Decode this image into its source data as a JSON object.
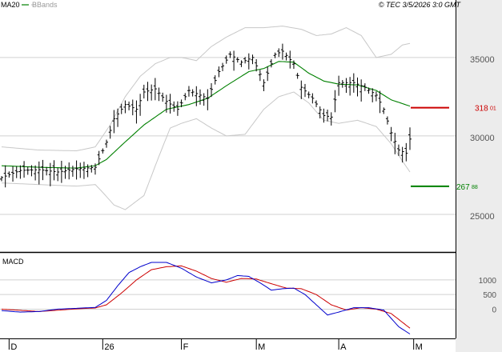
{
  "header": {
    "ma_label": "MA20",
    "bb_label": "BBands",
    "copyright": "© TEC 3/5/2026 3:0 GMT"
  },
  "macd_panel": {
    "title": "MACD"
  },
  "colors": {
    "price": "#000000",
    "ma20": "#008000",
    "bbands": "#c8c8c8",
    "macd_line": "#0000cc",
    "signal_line": "#cc0000",
    "resistance": "#cc0000",
    "support": "#008000",
    "grid": "#d0d0d0",
    "axis_bg": "#ececec"
  },
  "chart_data": {
    "type": "line",
    "price_axis": {
      "ylim": [
        22600,
        37900
      ],
      "ticks": [
        25000,
        30000,
        35000
      ],
      "tick_labels": [
        "25000",
        "30000",
        "35000"
      ]
    },
    "macd_axis": {
      "ylim": [
        -1000,
        1900
      ],
      "ticks": [
        1000,
        500,
        0
      ],
      "tick_labels": [
        "1000",
        "500",
        "0"
      ]
    },
    "x_axis": {
      "n_bars": 120,
      "ticks": [
        {
          "label": "D",
          "bar": 2
        },
        {
          "label": "26",
          "bar": 27
        },
        {
          "label": "F",
          "bar": 48
        },
        {
          "label": "M",
          "bar": 68
        },
        {
          "label": "A",
          "bar": 90
        },
        {
          "label": "M",
          "bar": 110
        }
      ]
    },
    "levels": [
      {
        "name": "resistance",
        "value": 31801,
        "label": "318",
        "label_small": "01"
      },
      {
        "name": "support",
        "value": 26788,
        "label": "267",
        "label_small": "88"
      }
    ],
    "price_anchors": [
      [
        0,
        27350
      ],
      [
        5,
        27800
      ],
      [
        10,
        27850
      ],
      [
        15,
        27700
      ],
      [
        20,
        27900
      ],
      [
        25,
        28000
      ],
      [
        28,
        29600
      ],
      [
        30,
        31100
      ],
      [
        33,
        32000
      ],
      [
        36,
        31700
      ],
      [
        38,
        32800
      ],
      [
        41,
        33000
      ],
      [
        44,
        32200
      ],
      [
        47,
        31700
      ],
      [
        50,
        32900
      ],
      [
        55,
        32400
      ],
      [
        58,
        34100
      ],
      [
        61,
        35200
      ],
      [
        64,
        34700
      ],
      [
        67,
        35000
      ],
      [
        70,
        33400
      ],
      [
        73,
        35200
      ],
      [
        75,
        35400
      ],
      [
        78,
        34600
      ],
      [
        80,
        33100
      ],
      [
        83,
        32400
      ],
      [
        86,
        31300
      ],
      [
        88,
        31200
      ],
      [
        90,
        33400
      ],
      [
        94,
        33400
      ],
      [
        97,
        33100
      ],
      [
        100,
        32600
      ],
      [
        102,
        31700
      ],
      [
        104,
        30200
      ],
      [
        106,
        29100
      ],
      [
        108,
        28900
      ],
      [
        109,
        29800
      ]
    ],
    "ma20_anchors": [
      [
        0,
        28100
      ],
      [
        10,
        28000
      ],
      [
        20,
        27950
      ],
      [
        25,
        28100
      ],
      [
        28,
        28500
      ],
      [
        32,
        29400
      ],
      [
        38,
        30700
      ],
      [
        44,
        31700
      ],
      [
        50,
        32000
      ],
      [
        55,
        32400
      ],
      [
        60,
        33200
      ],
      [
        66,
        34100
      ],
      [
        70,
        34300
      ],
      [
        74,
        34750
      ],
      [
        78,
        34700
      ],
      [
        82,
        34000
      ],
      [
        86,
        33500
      ],
      [
        90,
        33300
      ],
      [
        95,
        33250
      ],
      [
        100,
        32900
      ],
      [
        104,
        32300
      ],
      [
        109,
        31900
      ]
    ],
    "bb_upper_anchors": [
      [
        0,
        29300
      ],
      [
        10,
        29100
      ],
      [
        20,
        29050
      ],
      [
        25,
        29300
      ],
      [
        29,
        30700
      ],
      [
        33,
        32500
      ],
      [
        37,
        33800
      ],
      [
        41,
        34600
      ],
      [
        45,
        35000
      ],
      [
        48,
        35000
      ],
      [
        52,
        34800
      ],
      [
        56,
        35700
      ],
      [
        60,
        36300
      ],
      [
        65,
        36900
      ],
      [
        70,
        36900
      ],
      [
        75,
        37000
      ],
      [
        80,
        36800
      ],
      [
        84,
        36400
      ],
      [
        88,
        36500
      ],
      [
        92,
        36900
      ],
      [
        96,
        36400
      ],
      [
        100,
        35000
      ],
      [
        104,
        35200
      ],
      [
        107,
        35800
      ],
      [
        109,
        35900
      ]
    ],
    "bb_lower_anchors": [
      [
        0,
        27000
      ],
      [
        10,
        26900
      ],
      [
        20,
        26800
      ],
      [
        25,
        26900
      ],
      [
        27,
        26400
      ],
      [
        30,
        25600
      ],
      [
        33,
        25300
      ],
      [
        38,
        26200
      ],
      [
        42,
        28700
      ],
      [
        45,
        30500
      ],
      [
        48,
        30800
      ],
      [
        52,
        31100
      ],
      [
        56,
        30500
      ],
      [
        60,
        30000
      ],
      [
        65,
        30100
      ],
      [
        70,
        31700
      ],
      [
        74,
        32500
      ],
      [
        78,
        32800
      ],
      [
        82,
        32100
      ],
      [
        86,
        31000
      ],
      [
        90,
        30800
      ],
      [
        95,
        31000
      ],
      [
        100,
        30600
      ],
      [
        104,
        29500
      ],
      [
        107,
        28400
      ],
      [
        109,
        27700
      ]
    ],
    "macd_anchors": [
      [
        0,
        -50
      ],
      [
        5,
        -100
      ],
      [
        10,
        -80
      ],
      [
        15,
        0
      ],
      [
        20,
        30
      ],
      [
        25,
        60
      ],
      [
        28,
        300
      ],
      [
        31,
        800
      ],
      [
        34,
        1250
      ],
      [
        37,
        1450
      ],
      [
        40,
        1600
      ],
      [
        44,
        1600
      ],
      [
        48,
        1400
      ],
      [
        52,
        1100
      ],
      [
        56,
        900
      ],
      [
        60,
        1000
      ],
      [
        63,
        1150
      ],
      [
        66,
        1120
      ],
      [
        69,
        900
      ],
      [
        72,
        650
      ],
      [
        75,
        700
      ],
      [
        78,
        720
      ],
      [
        81,
        500
      ],
      [
        84,
        150
      ],
      [
        87,
        -200
      ],
      [
        90,
        -100
      ],
      [
        94,
        50
      ],
      [
        98,
        50
      ],
      [
        102,
        -30
      ],
      [
        106,
        -600
      ],
      [
        109,
        -850
      ]
    ],
    "signal_anchors": [
      [
        0,
        0
      ],
      [
        10,
        -80
      ],
      [
        20,
        10
      ],
      [
        25,
        40
      ],
      [
        28,
        150
      ],
      [
        32,
        550
      ],
      [
        36,
        1000
      ],
      [
        40,
        1350
      ],
      [
        44,
        1450
      ],
      [
        48,
        1480
      ],
      [
        52,
        1300
      ],
      [
        56,
        1050
      ],
      [
        60,
        920
      ],
      [
        64,
        1050
      ],
      [
        68,
        1030
      ],
      [
        72,
        870
      ],
      [
        76,
        720
      ],
      [
        80,
        700
      ],
      [
        84,
        500
      ],
      [
        88,
        150
      ],
      [
        92,
        -30
      ],
      [
        96,
        50
      ],
      [
        100,
        0
      ],
      [
        104,
        -150
      ],
      [
        107,
        -450
      ],
      [
        109,
        -650
      ]
    ]
  }
}
